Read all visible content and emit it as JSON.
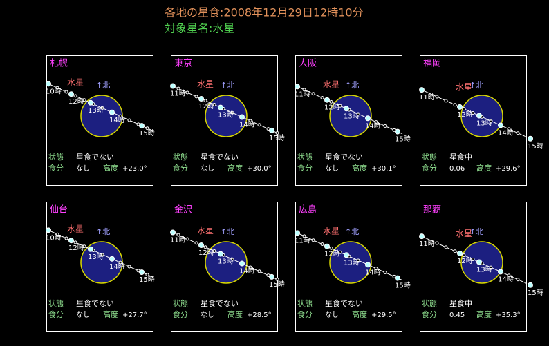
{
  "header": {
    "title": "各地の星食:2008年12月29日12時10分",
    "subtitle": "対象星名:水星"
  },
  "panels": [
    {
      "name": "札幌",
      "planet": "水星",
      "north": "↑北",
      "hours": [
        "10時",
        "12時",
        "13時",
        "14時",
        "15時"
      ],
      "status_label": "状態",
      "status": "星食でない",
      "fraction_label": "食分",
      "fraction": "なし",
      "altitude_label": "高度",
      "altitude": "+23.0°"
    },
    {
      "name": "東京",
      "planet": "水星",
      "north": "↑北",
      "hours": [
        "11時",
        "12時",
        "13時",
        "14時",
        "15時"
      ],
      "status_label": "状態",
      "status": "星食でない",
      "fraction_label": "食分",
      "fraction": "なし",
      "altitude_label": "高度",
      "altitude": "+30.0°"
    },
    {
      "name": "大阪",
      "planet": "水星",
      "north": "↑北",
      "hours": [
        "11時",
        "12時",
        "13時",
        "14時",
        "15時"
      ],
      "status_label": "状態",
      "status": "星食でない",
      "fraction_label": "食分",
      "fraction": "なし",
      "altitude_label": "高度",
      "altitude": "+30.1°"
    },
    {
      "name": "福岡",
      "planet": "水星",
      "north": "↑北",
      "hours": [
        "11時",
        "12時",
        "13時",
        "14時",
        "15時"
      ],
      "status_label": "状態",
      "status": "星食中",
      "fraction_label": "食分",
      "fraction": "0.06",
      "altitude_label": "高度",
      "altitude": "+29.6°"
    },
    {
      "name": "仙台",
      "planet": "水星",
      "north": "↑北",
      "hours": [
        "10時",
        "12時",
        "13時",
        "14時",
        "15時"
      ],
      "status_label": "状態",
      "status": "星食でない",
      "fraction_label": "食分",
      "fraction": "なし",
      "altitude_label": "高度",
      "altitude": "+27.7°"
    },
    {
      "name": "金沢",
      "planet": "水星",
      "north": "↑北",
      "hours": [
        "11時",
        "12時",
        "13時",
        "14時",
        "15時"
      ],
      "status_label": "状態",
      "status": "星食でない",
      "fraction_label": "食分",
      "fraction": "なし",
      "altitude_label": "高度",
      "altitude": "+28.5°"
    },
    {
      "name": "広島",
      "planet": "水星",
      "north": "↑北",
      "hours": [
        "11時",
        "12時",
        "13時",
        "14時",
        "15時"
      ],
      "status_label": "状態",
      "status": "星食でない",
      "fraction_label": "食分",
      "fraction": "なし",
      "altitude_label": "高度",
      "altitude": "+29.5°"
    },
    {
      "name": "那覇",
      "planet": "水星",
      "north": "↑北",
      "hours": [
        "11時",
        "12時",
        "13時",
        "14時",
        "15時"
      ],
      "status_label": "状態",
      "status": "星食中",
      "fraction_label": "食分",
      "fraction": "0.45",
      "altitude_label": "高度",
      "altitude": "+35.3°"
    }
  ]
}
